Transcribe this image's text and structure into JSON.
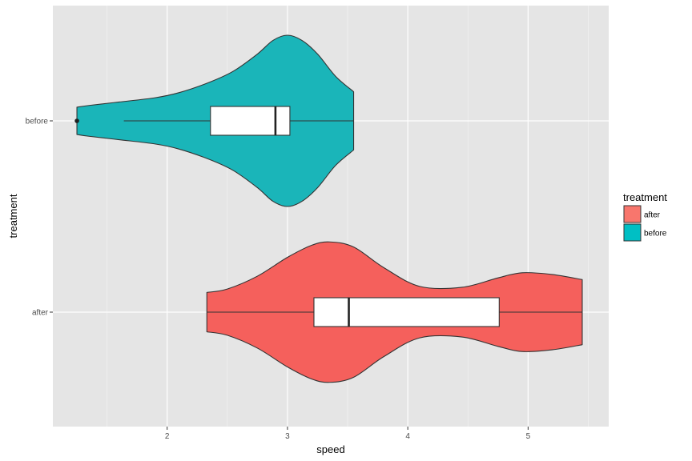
{
  "chart_data": {
    "type": "violin",
    "xlabel": "speed",
    "ylabel": "treatment",
    "xlim": [
      1.05,
      5.67
    ],
    "x_ticks": [
      2,
      3,
      4,
      5
    ],
    "x_tick_labels": [
      "2",
      "3",
      "4",
      "5"
    ],
    "categories": [
      "before",
      "after"
    ],
    "grid": true,
    "background": "#e5e5e5",
    "legend": {
      "title": "treatment",
      "position": "right",
      "entries": [
        {
          "label": "after",
          "color": "#f8766d"
        },
        {
          "label": "before",
          "color": "#00bfc4"
        }
      ]
    },
    "series": [
      {
        "name": "before",
        "color": "#1ab5b9",
        "density": [
          [
            1.25,
            0.16
          ],
          [
            1.35,
            0.18
          ],
          [
            1.6,
            0.22
          ],
          [
            1.9,
            0.27
          ],
          [
            2.1,
            0.33
          ],
          [
            2.35,
            0.45
          ],
          [
            2.55,
            0.58
          ],
          [
            2.75,
            0.78
          ],
          [
            2.88,
            0.94
          ],
          [
            3.0,
            1.0
          ],
          [
            3.12,
            0.94
          ],
          [
            3.25,
            0.78
          ],
          [
            3.4,
            0.52
          ],
          [
            3.55,
            0.34
          ]
        ],
        "box": {
          "whisker_low": 1.64,
          "q1": 2.36,
          "median": 2.9,
          "q3": 3.02,
          "whisker_high": 3.55
        },
        "outliers": [
          1.25
        ]
      },
      {
        "name": "after",
        "color": "#f5605c",
        "density": [
          [
            2.33,
            0.23
          ],
          [
            2.5,
            0.27
          ],
          [
            2.75,
            0.42
          ],
          [
            3.0,
            0.64
          ],
          [
            3.2,
            0.78
          ],
          [
            3.35,
            0.82
          ],
          [
            3.55,
            0.76
          ],
          [
            3.8,
            0.52
          ],
          [
            4.1,
            0.3
          ],
          [
            4.45,
            0.29
          ],
          [
            4.75,
            0.4
          ],
          [
            4.95,
            0.46
          ],
          [
            5.2,
            0.44
          ],
          [
            5.45,
            0.38
          ]
        ],
        "box": {
          "whisker_low": 2.33,
          "q1": 3.22,
          "median": 3.51,
          "q3": 4.76,
          "whisker_high": 5.45
        },
        "outliers": []
      }
    ]
  }
}
